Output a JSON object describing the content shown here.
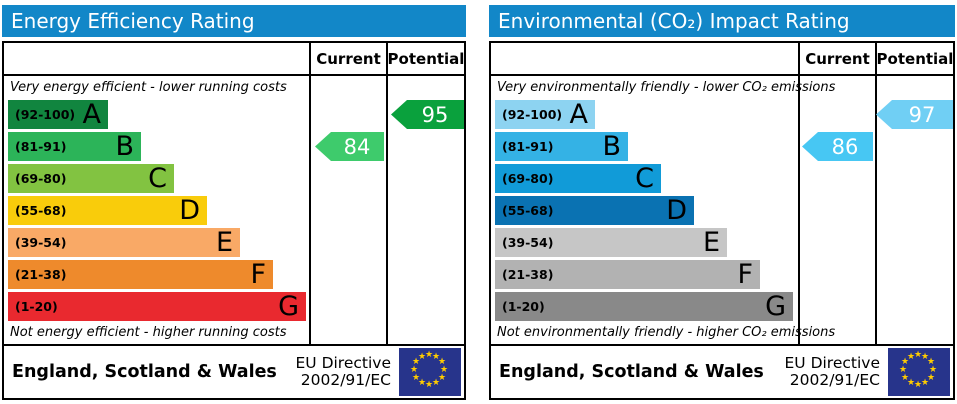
{
  "shared": {
    "column_headers": {
      "current": "Current",
      "potential": "Potential"
    },
    "footer": {
      "region": "England, Scotland & Wales",
      "directive_line1": "EU Directive",
      "directive_line2": "2002/91/EC"
    },
    "icons": {
      "eu_star": "★"
    },
    "colors": {
      "title_bar": "#1287c8",
      "flag_background": "#27348b",
      "flag_stars": "#ffcc00",
      "border": "#000000",
      "arrow_text": "#ffffff"
    }
  },
  "energy_chart": {
    "title": "Energy Efficiency Rating",
    "top_note": "Very energy efficient - lower running costs",
    "bottom_note": "Not energy efficient - higher running costs",
    "bands": [
      {
        "letter": "A",
        "range": "(92-100)",
        "color": "#11853f"
      },
      {
        "letter": "B",
        "range": "(81-91)",
        "color": "#2cb459"
      },
      {
        "letter": "C",
        "range": "(69-80)",
        "color": "#82c341"
      },
      {
        "letter": "D",
        "range": "(55-68)",
        "color": "#f9cc0b"
      },
      {
        "letter": "E",
        "range": "(39-54)",
        "color": "#f9a966"
      },
      {
        "letter": "F",
        "range": "(21-38)",
        "color": "#ee8a2c"
      },
      {
        "letter": "G",
        "range": "(1-20)",
        "color": "#e9292f"
      }
    ],
    "current": {
      "value": "84",
      "band": "B",
      "color": "#3ecb6c"
    },
    "potential": {
      "value": "95",
      "band": "A",
      "color": "#0aa13d"
    }
  },
  "co2_chart": {
    "title": "Environmental (CO₂) Impact Rating",
    "top_note": "Very environmentally friendly - lower CO₂ emissions",
    "bottom_note": "Not environmentally friendly - higher CO₂ emissions",
    "bands": [
      {
        "letter": "A",
        "range": "(92-100)",
        "color": "#8dd3f1"
      },
      {
        "letter": "B",
        "range": "(81-91)",
        "color": "#34b2e5"
      },
      {
        "letter": "C",
        "range": "(69-80)",
        "color": "#119bd8"
      },
      {
        "letter": "D",
        "range": "(55-68)",
        "color": "#0a72b2"
      },
      {
        "letter": "E",
        "range": "(39-54)",
        "color": "#c6c6c6"
      },
      {
        "letter": "F",
        "range": "(21-38)",
        "color": "#b2b2b2"
      },
      {
        "letter": "G",
        "range": "(1-20)",
        "color": "#898989"
      }
    ],
    "current": {
      "value": "86",
      "band": "B",
      "color": "#47c7f3"
    },
    "potential": {
      "value": "97",
      "band": "A",
      "color": "#70cff4"
    }
  },
  "chart_data": [
    {
      "type": "bar",
      "title": "Energy Efficiency Rating",
      "categories": [
        "A (92-100)",
        "B (81-91)",
        "C (69-80)",
        "D (55-68)",
        "E (39-54)",
        "F (21-38)",
        "G (1-20)"
      ],
      "scale_min": 1,
      "scale_max": 100,
      "current_rating": 84,
      "current_band": "B",
      "potential_rating": 95,
      "potential_band": "A",
      "top_label": "Very energy efficient - lower running costs",
      "bottom_label": "Not energy efficient - higher running costs",
      "region": "England, Scotland & Wales",
      "directive": "EU Directive 2002/91/EC"
    },
    {
      "type": "bar",
      "title": "Environmental (CO₂) Impact Rating",
      "categories": [
        "A (92-100)",
        "B (81-91)",
        "C (69-80)",
        "D (55-68)",
        "E (39-54)",
        "F (21-38)",
        "G (1-20)"
      ],
      "scale_min": 1,
      "scale_max": 100,
      "current_rating": 86,
      "current_band": "B",
      "potential_rating": 97,
      "potential_band": "A",
      "top_label": "Very environmentally friendly - lower CO₂ emissions",
      "bottom_label": "Not environmentally friendly - higher CO₂ emissions",
      "region": "England, Scotland & Wales",
      "directive": "EU Directive 2002/91/EC"
    }
  ]
}
